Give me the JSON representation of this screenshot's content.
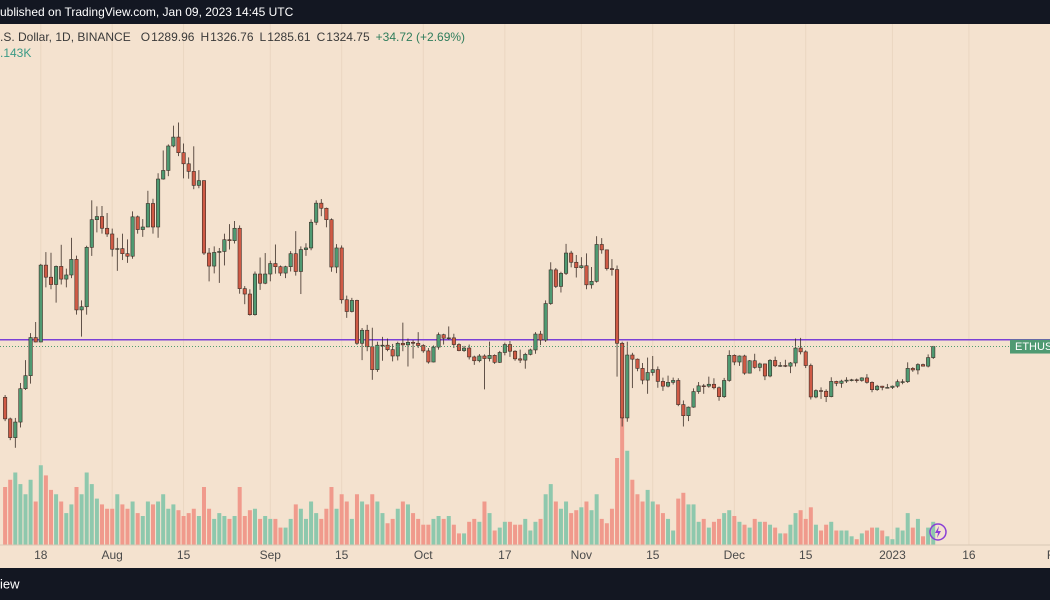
{
  "header": {
    "published": "ublished on TradingView.com, Jan 09, 2023 14:45 UTC"
  },
  "footer": {
    "brand": "iew"
  },
  "chart_data": {
    "type": "candlestick",
    "symbol": ".S. Dollar, 1D, BINANCE",
    "legend_labels": {
      "open": "O",
      "high": "H",
      "low": "L",
      "close": "C"
    },
    "change": "+34.72 (+2.69%)",
    "volume_label": ".143K",
    "price_tag": "ETHUS",
    "hline": 1346,
    "hline_color": "#7b3fd6",
    "up_color": "#4f9a72",
    "down_color": "#cf5a45",
    "volume_up_color": "#8ec8ad",
    "volume_down_color": "#f09a8c",
    "grid": true,
    "xlim": [
      -1,
      204.9
    ],
    "ylim": [
      700,
      2340
    ],
    "volume_lim": [
      0,
      100
    ],
    "xticks": [
      {
        "value": 7,
        "label": "18"
      },
      {
        "value": 21,
        "label": "Aug"
      },
      {
        "value": 35,
        "label": "15"
      },
      {
        "value": 52,
        "label": "Sep"
      },
      {
        "value": 66,
        "label": "15"
      },
      {
        "value": 82,
        "label": "Oct"
      },
      {
        "value": 98,
        "label": "17"
      },
      {
        "value": 113,
        "label": "Nov"
      },
      {
        "value": 127,
        "label": "15"
      },
      {
        "value": 143,
        "label": "Dec"
      },
      {
        "value": 157,
        "label": "15"
      },
      {
        "value": 174,
        "label": "2023"
      },
      {
        "value": 189,
        "label": "16"
      },
      {
        "value": 205,
        "label": "F"
      }
    ],
    "open": [
      1165,
      1097,
      1038,
      1087,
      1192,
      1233,
      1353,
      1339,
      1581,
      1543,
      1520,
      1577,
      1537,
      1550,
      1599,
      1440,
      1450,
      1637,
      1724,
      1734,
      1697,
      1679,
      1631,
      1633,
      1617,
      1609,
      1733,
      1693,
      1701,
      1775,
      1701,
      1852,
      1879,
      1956,
      1984,
      1935,
      1900,
      1876,
      1832,
      1847,
      1619,
      1578,
      1621,
      1624,
      1661,
      1658,
      1697,
      1507,
      1490,
      1425,
      1553,
      1524,
      1553,
      1586,
      1576,
      1556,
      1576,
      1617,
      1561,
      1630,
      1635,
      1716,
      1776,
      1760,
      1724,
      1575,
      1635,
      1472,
      1435,
      1470,
      1335,
      1376,
      1324,
      1252,
      1329,
      1329,
      1315,
      1295,
      1335,
      1330,
      1338,
      1335,
      1328,
      1311,
      1276,
      1323,
      1362,
      1351,
      1352,
      1331,
      1312,
      1320,
      1292,
      1280,
      1295,
      1287,
      1297,
      1275,
      1306,
      1331,
      1310,
      1286,
      1282,
      1300,
      1314,
      1364,
      1345,
      1460,
      1566,
      1514,
      1555,
      1619,
      1590,
      1573,
      1579,
      1519,
      1530,
      1646,
      1629,
      1570,
      1567,
      1335,
      1100,
      1298,
      1285,
      1256,
      1219,
      1243,
      1252,
      1215,
      1200,
      1212,
      1218,
      1142,
      1107,
      1134,
      1183,
      1201,
      1200,
      1206,
      1195,
      1167,
      1218,
      1297,
      1276,
      1295,
      1241,
      1280,
      1259,
      1270,
      1232,
      1281,
      1264,
      1265,
      1263,
      1273,
      1320,
      1308,
      1265,
      1166,
      1186,
      1184,
      1167,
      1215,
      1209,
      1216,
      1219,
      1220,
      1218,
      1226,
      1212,
      1189,
      1200,
      1196,
      1196,
      1200,
      1214,
      1214,
      1256,
      1251,
      1268,
      1263,
      1289.96
    ],
    "high": [
      1172,
      1101,
      1100,
      1210,
      1282,
      1367,
      1402,
      1585,
      1622,
      1620,
      1580,
      1645,
      1570,
      1667,
      1611,
      1470,
      1642,
      1785,
      1766,
      1767,
      1745,
      1696,
      1667,
      1680,
      1662,
      1750,
      1737,
      1726,
      1815,
      1790,
      1870,
      1942,
      1961,
      2020,
      2030,
      1964,
      1920,
      1955,
      1880,
      1848,
      1635,
      1640,
      1635,
      1680,
      1710,
      1720,
      1706,
      1515,
      1505,
      1561,
      1605,
      1619,
      1595,
      1646,
      1580,
      1579,
      1625,
      1688,
      1640,
      1650,
      1725,
      1785,
      1789,
      1762,
      1728,
      1647,
      1643,
      1485,
      1478,
      1472,
      1383,
      1393,
      1384,
      1340,
      1355,
      1350,
      1333,
      1340,
      1400,
      1350,
      1345,
      1370,
      1332,
      1320,
      1328,
      1369,
      1365,
      1388,
      1365,
      1335,
      1327,
      1331,
      1296,
      1301,
      1300,
      1340,
      1300,
      1311,
      1337,
      1342,
      1313,
      1315,
      1305,
      1318,
      1370,
      1374,
      1470,
      1590,
      1572,
      1560,
      1648,
      1626,
      1613,
      1606,
      1618,
      1575,
      1672,
      1666,
      1630,
      1600,
      1580,
      1340,
      1340,
      1305,
      1287,
      1273,
      1290,
      1295,
      1262,
      1227,
      1233,
      1227,
      1225,
      1155,
      1136,
      1193,
      1213,
      1207,
      1230,
      1225,
      1199,
      1226,
      1313,
      1300,
      1297,
      1299,
      1282,
      1302,
      1274,
      1271,
      1285,
      1293,
      1276,
      1283,
      1276,
      1350,
      1352,
      1313,
      1271,
      1190,
      1196,
      1190,
      1228,
      1217,
      1220,
      1228,
      1223,
      1224,
      1228,
      1238,
      1215,
      1204,
      1201,
      1207,
      1202,
      1221,
      1222,
      1275,
      1260,
      1272,
      1271,
      1300,
      1326.76
    ],
    "low": [
      1090,
      1030,
      1006,
      1070,
      1188,
      1208,
      1338,
      1338,
      1511,
      1505,
      1463,
      1520,
      1511,
      1540,
      1425,
      1356,
      1425,
      1610,
      1684,
      1680,
      1670,
      1608,
      1563,
      1597,
      1588,
      1601,
      1680,
      1670,
      1700,
      1680,
      1667,
      1850,
      1861,
      1952,
      1924,
      1854,
      1853,
      1820,
      1823,
      1613,
      1530,
      1555,
      1525,
      1580,
      1630,
      1649,
      1491,
      1458,
      1422,
      1422,
      1503,
      1521,
      1530,
      1554,
      1547,
      1540,
      1561,
      1548,
      1490,
      1610,
      1628,
      1707,
      1735,
      1700,
      1560,
      1556,
      1460,
      1415,
      1432,
      1330,
      1282,
      1310,
      1220,
      1245,
      1280,
      1310,
      1278,
      1281,
      1310,
      1262,
      1287,
      1320,
      1305,
      1271,
      1275,
      1315,
      1331,
      1346,
      1320,
      1310,
      1308,
      1284,
      1267,
      1275,
      1190,
      1278,
      1270,
      1273,
      1297,
      1292,
      1280,
      1273,
      1255,
      1297,
      1302,
      1329,
      1339,
      1456,
      1509,
      1495,
      1550,
      1574,
      1542,
      1570,
      1505,
      1507,
      1526,
      1617,
      1564,
      1548,
      1230,
      1073,
      1088,
      1194,
      1247,
      1206,
      1176,
      1233,
      1195,
      1185,
      1196,
      1205,
      1137,
      1073,
      1090,
      1132,
      1176,
      1176,
      1195,
      1190,
      1154,
      1163,
      1214,
      1266,
      1264,
      1236,
      1240,
      1255,
      1247,
      1219,
      1228,
      1260,
      1261,
      1260,
      1241,
      1262,
      1300,
      1257,
      1158,
      1162,
      1160,
      1150,
      1165,
      1200,
      1195,
      1210,
      1215,
      1211,
      1214,
      1208,
      1181,
      1185,
      1187,
      1194,
      1191,
      1195,
      1206,
      1210,
      1245,
      1237,
      1262,
      1259,
      1285.61
    ],
    "close": [
      1097,
      1038,
      1087,
      1192,
      1233,
      1353,
      1339,
      1581,
      1543,
      1520,
      1577,
      1537,
      1550,
      1599,
      1440,
      1450,
      1637,
      1724,
      1734,
      1697,
      1679,
      1631,
      1633,
      1617,
      1609,
      1733,
      1693,
      1701,
      1775,
      1701,
      1852,
      1879,
      1956,
      1984,
      1935,
      1900,
      1876,
      1832,
      1847,
      1619,
      1578,
      1621,
      1624,
      1661,
      1658,
      1697,
      1507,
      1490,
      1425,
      1553,
      1524,
      1553,
      1586,
      1576,
      1556,
      1576,
      1617,
      1561,
      1630,
      1635,
      1716,
      1776,
      1760,
      1724,
      1575,
      1635,
      1472,
      1435,
      1470,
      1335,
      1376,
      1324,
      1252,
      1329,
      1329,
      1315,
      1295,
      1335,
      1330,
      1338,
      1335,
      1328,
      1311,
      1276,
      1323,
      1362,
      1351,
      1352,
      1331,
      1312,
      1320,
      1292,
      1280,
      1295,
      1287,
      1297,
      1275,
      1306,
      1331,
      1310,
      1286,
      1282,
      1300,
      1314,
      1364,
      1345,
      1460,
      1566,
      1514,
      1555,
      1619,
      1590,
      1573,
      1579,
      1519,
      1530,
      1646,
      1629,
      1570,
      1567,
      1335,
      1100,
      1298,
      1285,
      1256,
      1219,
      1243,
      1252,
      1215,
      1200,
      1212,
      1218,
      1142,
      1107,
      1134,
      1183,
      1201,
      1200,
      1206,
      1195,
      1167,
      1218,
      1297,
      1276,
      1295,
      1241,
      1280,
      1259,
      1270,
      1232,
      1281,
      1264,
      1265,
      1263,
      1273,
      1320,
      1308,
      1265,
      1166,
      1186,
      1184,
      1167,
      1215,
      1209,
      1216,
      1219,
      1220,
      1218,
      1226,
      1212,
      1189,
      1200,
      1196,
      1196,
      1200,
      1214,
      1214,
      1256,
      1251,
      1268,
      1263,
      1290,
      1324.75
    ],
    "volume": [
      40,
      45,
      50,
      42,
      35,
      45,
      30,
      55,
      48,
      38,
      35,
      30,
      22,
      28,
      40,
      35,
      50,
      42,
      32,
      28,
      25,
      25,
      35,
      28,
      25,
      30,
      22,
      20,
      30,
      28,
      30,
      35,
      25,
      28,
      24,
      20,
      22,
      25,
      20,
      40,
      25,
      18,
      22,
      20,
      18,
      20,
      40,
      20,
      24,
      25,
      18,
      20,
      18,
      18,
      12,
      12,
      18,
      28,
      25,
      18,
      30,
      22,
      18,
      25,
      40,
      25,
      35,
      30,
      18,
      35,
      30,
      28,
      35,
      30,
      22,
      15,
      18,
      25,
      30,
      28,
      22,
      18,
      14,
      14,
      18,
      20,
      18,
      20,
      14,
      8,
      8,
      16,
      18,
      16,
      30,
      22,
      10,
      12,
      16,
      16,
      14,
      14,
      18,
      10,
      16,
      18,
      35,
      42,
      30,
      25,
      30,
      22,
      24,
      26,
      30,
      24,
      35,
      18,
      15,
      25,
      60,
      90,
      65,
      45,
      35,
      30,
      38,
      30,
      28,
      22,
      18,
      10,
      32,
      36,
      28,
      28,
      16,
      18,
      12,
      16,
      18,
      22,
      24,
      20,
      16,
      14,
      12,
      18,
      16,
      16,
      14,
      12,
      8,
      8,
      14,
      22,
      24,
      18,
      26,
      14,
      10,
      14,
      16,
      10,
      10,
      10,
      6,
      4,
      8,
      10,
      12,
      12,
      10,
      6,
      4,
      12,
      10,
      22,
      12,
      18,
      6,
      12,
      16
    ]
  }
}
